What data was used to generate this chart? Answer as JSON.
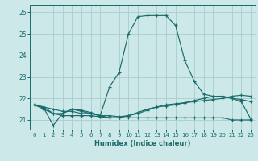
{
  "xlabel": "Humidex (Indice chaleur)",
  "background_color": "#cce8e8",
  "grid_color": "#aacccc",
  "line_color": "#1a6b6b",
  "xlim": [
    -0.5,
    23.5
  ],
  "ylim": [
    20.55,
    26.35
  ],
  "yticks": [
    21,
    22,
    23,
    24,
    25,
    26
  ],
  "xticks": [
    0,
    1,
    2,
    3,
    4,
    5,
    6,
    7,
    8,
    9,
    10,
    11,
    12,
    13,
    14,
    15,
    16,
    17,
    18,
    19,
    20,
    21,
    22,
    23
  ],
  "series": [
    [
      21.7,
      21.55,
      20.75,
      21.3,
      21.5,
      21.4,
      21.3,
      21.2,
      21.1,
      21.1,
      21.1,
      21.1,
      21.1,
      21.1,
      21.1,
      21.1,
      21.1,
      21.1,
      21.1,
      21.1,
      21.1,
      21.0,
      21.0,
      21.0
    ],
    [
      21.7,
      21.5,
      21.3,
      21.2,
      21.2,
      21.2,
      21.2,
      21.15,
      21.1,
      21.1,
      21.2,
      21.35,
      21.5,
      21.6,
      21.65,
      21.7,
      21.8,
      21.9,
      22.0,
      22.1,
      22.1,
      22.0,
      21.95,
      21.85
    ],
    [
      21.7,
      21.6,
      21.5,
      21.4,
      21.4,
      21.3,
      21.3,
      21.2,
      21.2,
      21.15,
      21.2,
      21.3,
      21.45,
      21.6,
      21.7,
      21.75,
      21.8,
      21.85,
      21.9,
      21.95,
      22.0,
      22.1,
      22.15,
      22.1
    ],
    [
      21.7,
      21.6,
      21.3,
      21.3,
      21.5,
      21.45,
      21.35,
      21.2,
      22.55,
      23.2,
      25.0,
      25.8,
      25.85,
      25.85,
      25.85,
      25.4,
      23.75,
      22.8,
      22.2,
      22.1,
      22.1,
      22.0,
      21.85,
      21.05
    ]
  ]
}
